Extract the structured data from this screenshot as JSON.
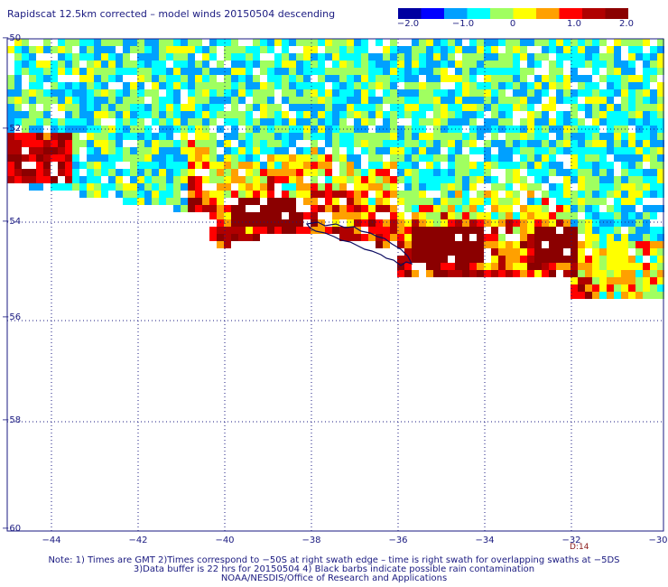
{
  "title": "Rapidscat 12.5km corrected – model winds 20150504 descending",
  "colorbar": {
    "labels": [
      "−2.0",
      "−1.0",
      "0",
      "1.0",
      "2.0"
    ],
    "range": [
      -2.0,
      2.0
    ],
    "colors": [
      "#0000a0",
      "#0000ff",
      "#00a0ff",
      "#00ffff",
      "#a0ff60",
      "#ffff00",
      "#ffa000",
      "#ff0000",
      "#b00000",
      "#8b0000"
    ]
  },
  "axes": {
    "lon_ticks": [
      "−44",
      "−42",
      "−40",
      "−38",
      "−36",
      "−34",
      "−32",
      "−30"
    ],
    "lat_ticks": [
      "−50",
      "−52",
      "−54",
      "−56",
      "−58",
      "−60"
    ],
    "lon_range": [
      -44.9,
      -30
    ],
    "lat_range": [
      -60,
      -50
    ],
    "grid": true
  },
  "time_label": "D:14",
  "notes": [
    "Note: 1) Times are GMT 2)Times correspond to −50S at right swath edge – time is right swath for overlapping swaths at −5DS",
    "3)Data buffer is 22 hrs for 20150504 4) Black barbs indicate possible rain contamination",
    "NOAA/NESDIS/Office of Research and Applications"
  ],
  "colors": {
    "text": "#1a1a80",
    "grid": "#1a1a80",
    "coast": "#0a0a60",
    "time_label": "#8b1a1a"
  }
}
